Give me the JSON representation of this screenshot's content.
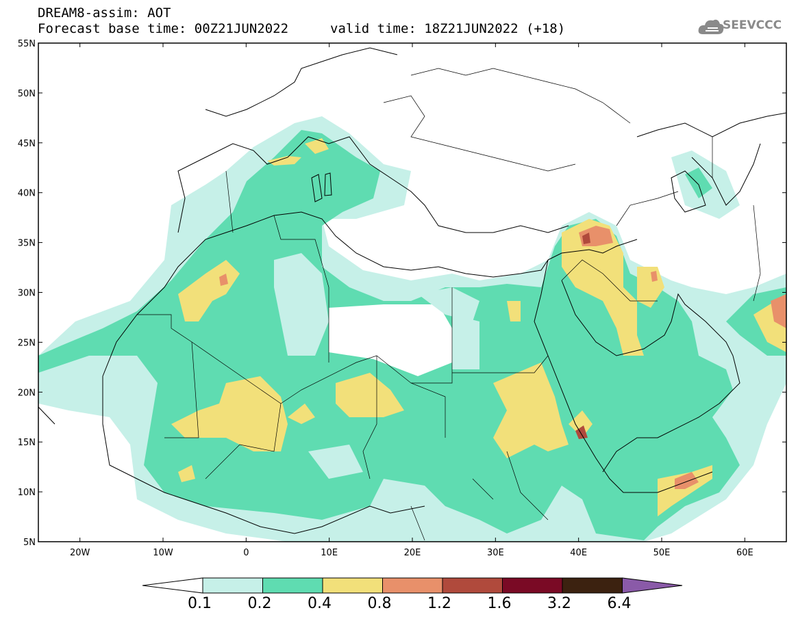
{
  "header": {
    "title": "DREAM8-assim: AOT",
    "base_time": "Forecast base time: 00Z21JUN2022",
    "valid_time": "valid time: 18Z21JUN2022 (+18)"
  },
  "logo": {
    "text": "SEEVCCC",
    "icon": "cloud-icon"
  },
  "axes": {
    "lat_labels": [
      "55N",
      "50N",
      "45N",
      "40N",
      "35N",
      "30N",
      "25N",
      "20N",
      "15N",
      "10N",
      "5N"
    ],
    "lon_labels": [
      "20W",
      "10W",
      "0",
      "10E",
      "20E",
      "30E",
      "40E",
      "50E",
      "60E"
    ],
    "lon_range": [
      -25,
      65
    ],
    "lat_range": [
      5,
      55
    ]
  },
  "colorbar": {
    "levels": [
      "0.1",
      "0.2",
      "0.4",
      "0.8",
      "1.2",
      "1.6",
      "3.2",
      "6.4"
    ],
    "colors": [
      "#c6f0e8",
      "#5fdcb1",
      "#f2e07a",
      "#e8906a",
      "#b04a3c",
      "#7a0a25",
      "#3c2210",
      "#8a5aa8"
    ]
  },
  "colors": {
    "c01": "#c6f0e8",
    "c02": "#5fdcb1",
    "c04": "#f2e07a",
    "c08": "#e8906a",
    "c12": "#b04a3c",
    "c16": "#7a0a25"
  }
}
